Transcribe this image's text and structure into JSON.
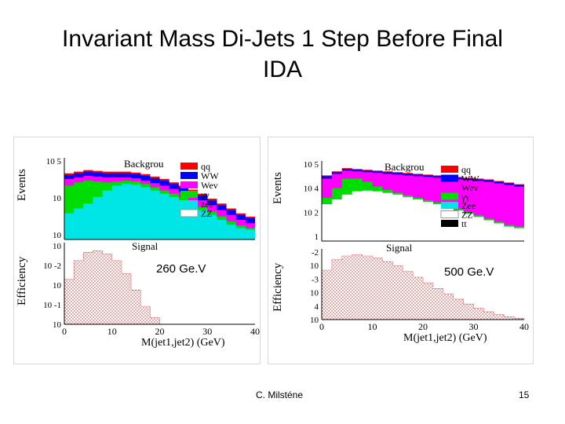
{
  "slide": {
    "title_line1": "Invariant Mass Di-Jets 1 Step Before Final",
    "title_line2": "IDA",
    "author": "C. Milsténe",
    "page_number": "15"
  },
  "colors": {
    "qq": "#ff0000",
    "WW": "#0000ff",
    "Wev": "#ff00ff",
    "gg": "#00dd00",
    "Zee": "#00e6e6",
    "ZZ": "#ffffff",
    "tt": "#000000",
    "signal": "#e07070"
  },
  "chart_data": [
    {
      "type": "area",
      "id": "left",
      "annotation": "260 Ge.V",
      "top": {
        "ylabel": "Events",
        "yticks": [
          "10 5",
          "10",
          "10"
        ],
        "ylim_log10": [
          0,
          5
        ],
        "legend_title": "Backgrou",
        "legend": [
          {
            "key": "qq",
            "label": "qq"
          },
          {
            "key": "WW",
            "label": "WW"
          },
          {
            "key": "Wev",
            "label": "Wev"
          },
          {
            "key": "gg",
            "label": "γγ"
          },
          {
            "key": "Zee",
            "label": "zee"
          },
          {
            "key": "ZZ",
            "label": "ZZ"
          }
        ],
        "x": [
          0,
          2,
          4,
          6,
          8,
          10,
          12,
          14,
          16,
          18,
          20,
          22,
          24,
          26,
          28,
          30,
          32,
          34,
          36,
          38,
          40
        ],
        "series": [
          {
            "name": "Zee",
            "values": [
              1.6,
              1.9,
              2.2,
              2.6,
              3.0,
              3.3,
              3.4,
              3.35,
              3.2,
              3.0,
              2.8,
              2.6,
              2.4,
              2.1,
              1.8,
              1.5,
              1.2,
              0.9,
              0.7,
              0.6,
              0.6
            ]
          },
          {
            "name": "gg",
            "values": [
              3.3,
              3.5,
              3.6,
              3.55,
              3.5,
              3.55,
              3.6,
              3.55,
              3.4,
              3.2,
              3.0,
              2.8,
              2.55,
              2.3,
              2.0,
              1.7,
              1.4,
              1.1,
              0.85,
              0.7,
              0.7
            ]
          },
          {
            "name": "Wev",
            "values": [
              3.7,
              3.8,
              3.9,
              3.85,
              3.8,
              3.8,
              3.8,
              3.75,
              3.6,
              3.45,
              3.3,
              3.1,
              2.9,
              2.65,
              2.4,
              2.1,
              1.8,
              1.5,
              1.2,
              1.0,
              1.0
            ]
          },
          {
            "name": "WW",
            "values": [
              3.95,
              4.05,
              4.15,
              4.1,
              4.05,
              4.05,
              4.05,
              4.0,
              3.9,
              3.75,
              3.6,
              3.4,
              3.2,
              2.95,
              2.7,
              2.4,
              2.1,
              1.8,
              1.5,
              1.3,
              1.3
            ]
          },
          {
            "name": "qq",
            "values": [
              4.05,
              4.15,
              4.25,
              4.2,
              4.15,
              4.15,
              4.15,
              4.1,
              4.0,
              3.85,
              3.7,
              3.5,
              3.3,
              3.05,
              2.8,
              2.5,
              2.2,
              1.9,
              1.6,
              1.4,
              1.4
            ]
          }
        ]
      },
      "bottom": {
        "ylabel": "Efficiency",
        "yticks": [
          "10",
          "10 -2",
          "10",
          "10 -1",
          "10"
        ],
        "xlabel": "M(jet1,jet2) (GeV)",
        "xticks": [
          "0",
          "10",
          "20",
          "30",
          "40"
        ],
        "xlim": [
          0,
          40
        ],
        "signal_label": "Signal",
        "signal": {
          "x": [
            0,
            2,
            4,
            6,
            8,
            10,
            12,
            14,
            16,
            18,
            20,
            22,
            24,
            26,
            28,
            30,
            32,
            34,
            36,
            38,
            40
          ],
          "values": [
            0.55,
            0.78,
            0.88,
            0.9,
            0.86,
            0.78,
            0.62,
            0.42,
            0.22,
            0.08,
            0,
            0,
            0,
            0,
            0,
            0,
            0,
            0,
            0,
            0,
            0
          ]
        }
      }
    },
    {
      "type": "area",
      "id": "right",
      "annotation": "500 Ge.V",
      "top": {
        "ylabel": "Events",
        "yticks": [
          "10 5",
          "10 4",
          "10 2",
          "1"
        ],
        "ylim_log10": [
          0,
          5
        ],
        "legend_title": "Backgrou",
        "legend": [
          {
            "key": "qq",
            "label": "qq"
          },
          {
            "key": "WW",
            "label": "WW"
          },
          {
            "key": "Wev",
            "label": "Wev"
          },
          {
            "key": "gg",
            "label": "γγ"
          },
          {
            "key": "Zee",
            "label": "Zee"
          },
          {
            "key": "ZZ",
            "label": "ZZ"
          },
          {
            "key": "tt",
            "label": "tt"
          }
        ],
        "x": [
          0,
          2,
          4,
          6,
          8,
          10,
          12,
          14,
          16,
          18,
          20,
          22,
          24,
          26,
          28,
          30,
          32,
          34,
          36,
          38,
          40
        ],
        "series": [
          {
            "name": "ZZ",
            "values": [
              2.3,
              2.6,
              2.9,
              3.1,
              3.15,
              3.1,
              3.0,
              2.9,
              2.75,
              2.6,
              2.45,
              2.3,
              2.1,
              1.9,
              1.7,
              1.5,
              1.3,
              1.1,
              0.9,
              0.8,
              0.8
            ]
          },
          {
            "name": "Zee",
            "values": [
              2.3,
              2.6,
              2.9,
              3.1,
              3.15,
              3.1,
              3.0,
              2.9,
              2.75,
              2.6,
              2.45,
              2.3,
              2.1,
              1.9,
              1.7,
              1.5,
              1.3,
              1.1,
              0.9,
              0.8,
              0.8
            ]
          },
          {
            "name": "gg",
            "values": [
              2.7,
              3.3,
              3.9,
              3.9,
              3.7,
              3.4,
              3.2,
              3.0,
              2.85,
              2.7,
              2.55,
              2.4,
              2.2,
              2.0,
              1.8,
              1.6,
              1.4,
              1.2,
              1.0,
              0.9,
              0.9
            ]
          },
          {
            "name": "Wev",
            "values": [
              3.9,
              4.2,
              4.4,
              4.35,
              4.3,
              4.25,
              4.2,
              4.15,
              4.1,
              4.05,
              4.0,
              3.95,
              3.9,
              3.85,
              3.8,
              3.75,
              3.7,
              3.6,
              3.5,
              3.4,
              3.4
            ]
          },
          {
            "name": "WW",
            "values": [
              4.05,
              4.3,
              4.5,
              4.45,
              4.4,
              4.35,
              4.3,
              4.25,
              4.2,
              4.15,
              4.1,
              4.05,
              4.0,
              3.95,
              3.9,
              3.85,
              3.8,
              3.7,
              3.6,
              3.5,
              3.5
            ]
          },
          {
            "name": "qq",
            "values": [
              4.1,
              4.35,
              4.55,
              4.5,
              4.45,
              4.4,
              4.35,
              4.3,
              4.25,
              4.2,
              4.15,
              4.1,
              4.05,
              4.0,
              3.95,
              3.9,
              3.85,
              3.75,
              3.65,
              3.55,
              3.55
            ]
          }
        ]
      },
      "bottom": {
        "ylabel": "Efficiency",
        "yticks": [
          "-2",
          "10",
          "-3",
          "10",
          "4",
          "10"
        ],
        "xlabel": "M(jet1,jet2) (GeV)",
        "xticks": [
          "0",
          "10",
          "20",
          "30",
          "40"
        ],
        "xlim": [
          0,
          40
        ],
        "signal_label": "Signal",
        "signal": {
          "x": [
            0,
            2,
            4,
            6,
            8,
            10,
            12,
            14,
            16,
            18,
            20,
            22,
            24,
            26,
            28,
            30,
            32,
            34,
            36,
            38,
            40
          ],
          "values": [
            0.7,
            0.85,
            0.9,
            0.92,
            0.9,
            0.87,
            0.82,
            0.76,
            0.68,
            0.6,
            0.52,
            0.44,
            0.36,
            0.29,
            0.22,
            0.16,
            0.11,
            0.07,
            0.04,
            0.02,
            0.01
          ]
        }
      }
    }
  ]
}
